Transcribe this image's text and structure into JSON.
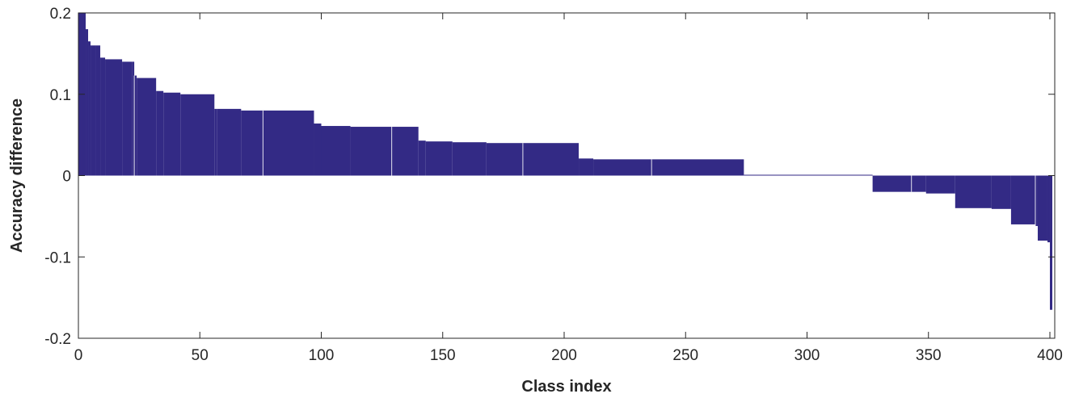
{
  "chart_data": {
    "type": "bar",
    "title": "",
    "xlabel": "Class index",
    "ylabel": "Accuracy difference",
    "xlim": [
      0,
      402
    ],
    "ylim": [
      -0.2,
      0.2
    ],
    "xticks": [
      0,
      50,
      100,
      150,
      200,
      250,
      300,
      350,
      400
    ],
    "yticks": [
      -0.2,
      -0.1,
      0,
      0.1,
      0.2
    ],
    "xtick_labels": [
      "0",
      "50",
      "100",
      "150",
      "200",
      "250",
      "300",
      "350",
      "400"
    ],
    "ytick_labels": [
      "-0.2",
      "-0.1",
      "0",
      "0.1",
      "0.2"
    ],
    "grid": false,
    "bar_color": "#332a85",
    "segments": [
      {
        "x_start": 0,
        "x_end": 1,
        "value": 0.2
      },
      {
        "x_start": 1,
        "x_end": 3,
        "value": 0.2
      },
      {
        "x_start": 3,
        "x_end": 4,
        "value": 0.18
      },
      {
        "x_start": 4,
        "x_end": 5,
        "value": 0.165
      },
      {
        "x_start": 5,
        "x_end": 7,
        "value": 0.16
      },
      {
        "x_start": 7,
        "x_end": 9,
        "value": 0.16
      },
      {
        "x_start": 9,
        "x_end": 11,
        "value": 0.145
      },
      {
        "x_start": 11,
        "x_end": 18,
        "value": 0.143
      },
      {
        "x_start": 18,
        "x_end": 22,
        "value": 0.14
      },
      {
        "x_start": 22,
        "x_end": 23,
        "value": 0.14
      },
      {
        "x_start": 23,
        "x_end": 24,
        "value": 0.123
      },
      {
        "x_start": 24,
        "x_end": 32,
        "value": 0.12
      },
      {
        "x_start": 32,
        "x_end": 35,
        "value": 0.104
      },
      {
        "x_start": 35,
        "x_end": 42,
        "value": 0.102
      },
      {
        "x_start": 42,
        "x_end": 56,
        "value": 0.1
      },
      {
        "x_start": 56,
        "x_end": 57,
        "value": 0.082
      },
      {
        "x_start": 57,
        "x_end": 67,
        "value": 0.082
      },
      {
        "x_start": 67,
        "x_end": 76,
        "value": 0.08
      },
      {
        "x_start": 76,
        "x_end": 97,
        "value": 0.08
      },
      {
        "x_start": 97,
        "x_end": 100,
        "value": 0.064
      },
      {
        "x_start": 100,
        "x_end": 112,
        "value": 0.061
      },
      {
        "x_start": 112,
        "x_end": 129,
        "value": 0.06
      },
      {
        "x_start": 129,
        "x_end": 140,
        "value": 0.06
      },
      {
        "x_start": 140,
        "x_end": 143,
        "value": 0.043
      },
      {
        "x_start": 143,
        "x_end": 154,
        "value": 0.042
      },
      {
        "x_start": 154,
        "x_end": 168,
        "value": 0.041
      },
      {
        "x_start": 168,
        "x_end": 183,
        "value": 0.04
      },
      {
        "x_start": 183,
        "x_end": 206,
        "value": 0.04
      },
      {
        "x_start": 206,
        "x_end": 212,
        "value": 0.021
      },
      {
        "x_start": 212,
        "x_end": 236,
        "value": 0.02
      },
      {
        "x_start": 236,
        "x_end": 274,
        "value": 0.02
      },
      {
        "x_start": 274,
        "x_end": 327,
        "value": 0.001
      },
      {
        "x_start": 327,
        "x_end": 343,
        "value": -0.02
      },
      {
        "x_start": 343,
        "x_end": 349,
        "value": -0.02
      },
      {
        "x_start": 349,
        "x_end": 361,
        "value": -0.022
      },
      {
        "x_start": 361,
        "x_end": 376,
        "value": -0.04
      },
      {
        "x_start": 376,
        "x_end": 384,
        "value": -0.041
      },
      {
        "x_start": 384,
        "x_end": 394,
        "value": -0.06
      },
      {
        "x_start": 394,
        "x_end": 395,
        "value": -0.062
      },
      {
        "x_start": 395,
        "x_end": 399,
        "value": -0.08
      },
      {
        "x_start": 399,
        "x_end": 400,
        "value": -0.082
      },
      {
        "x_start": 400,
        "x_end": 401,
        "value": -0.165
      }
    ]
  }
}
